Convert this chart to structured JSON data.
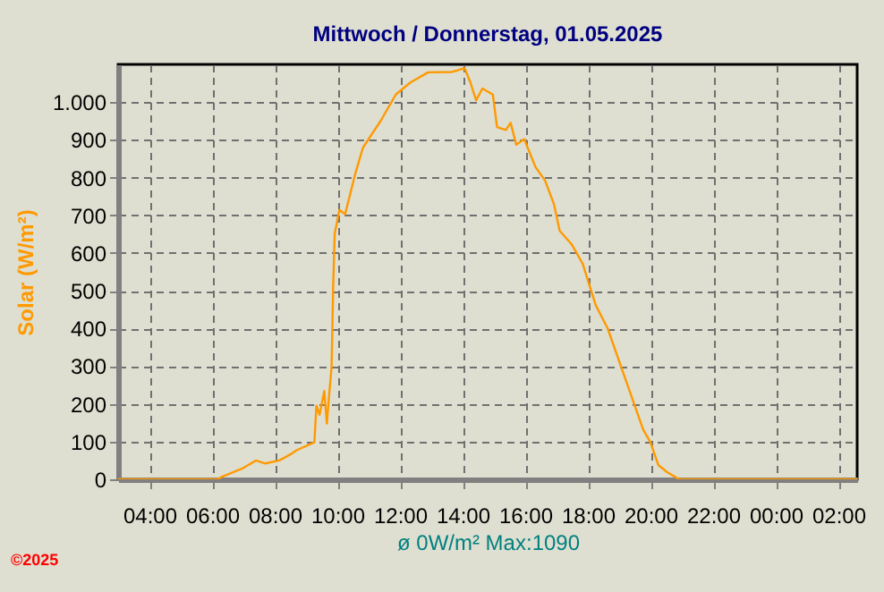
{
  "chart_data": {
    "type": "line",
    "title": "Mittwoch / Donnerstag, 01.05.2025",
    "ylabel": "Solar  (W/m²)",
    "xlabel": "ø 0W/m²  Max:1090",
    "annotations": [
      "©2025"
    ],
    "x": [
      "2025-04-30T03:00",
      "2025-04-30T06:10",
      "2025-04-30T06:18",
      "2025-04-30T07:00",
      "2025-04-30T07:24",
      "2025-04-30T07:42",
      "2025-04-30T08:09",
      "2025-04-30T08:30",
      "2025-04-30T08:42",
      "2025-04-30T09:16",
      "2025-04-30T09:20",
      "2025-04-30T09:26",
      "2025-04-30T09:35",
      "2025-04-30T09:40",
      "2025-04-30T09:44",
      "2025-04-30T09:49",
      "2025-04-30T09:52",
      "2025-04-30T09:55",
      "2025-04-30T10:04",
      "2025-04-30T10:15",
      "2025-04-30T10:34",
      "2025-04-30T10:49",
      "2025-04-30T11:06",
      "2025-04-30T11:23",
      "2025-04-30T11:52",
      "2025-04-30T12:20",
      "2025-04-30T12:54",
      "2025-04-30T13:40",
      "2025-04-30T14:04",
      "2025-04-30T14:15",
      "2025-04-30T14:26",
      "2025-04-30T14:38",
      "2025-04-30T14:58",
      "2025-04-30T15:06",
      "2025-04-30T15:23",
      "2025-04-30T15:32",
      "2025-04-30T15:43",
      "2025-04-30T15:58",
      "2025-04-30T16:20",
      "2025-04-30T16:38",
      "2025-04-30T16:55",
      "2025-04-30T17:06",
      "2025-04-30T17:29",
      "2025-04-30T17:50",
      "2025-04-30T18:15",
      "2025-04-30T18:38",
      "2025-04-30T19:12",
      "2025-04-30T19:46",
      "2025-04-30T20:00",
      "2025-04-30T20:15",
      "2025-04-30T20:32",
      "2025-04-30T20:55",
      "2025-05-01T02:36"
    ],
    "series": [
      {
        "color": "#ff9900",
        "values": [
          0,
          0,
          6,
          30,
          50,
          42,
          50,
          66,
          77,
          98,
          195,
          171,
          234,
          148,
          218,
          297,
          509,
          651,
          714,
          703,
          808,
          879,
          915,
          950,
          1020,
          1052,
          1079,
          1080,
          1090,
          1052,
          1005,
          1036,
          1020,
          934,
          926,
          945,
          887,
          902,
          827,
          792,
          730,
          659,
          623,
          572,
          462,
          400,
          266,
          132,
          98,
          38,
          19,
          0,
          0
        ]
      }
    ],
    "xlim": [
      "2025-04-30T03:00",
      "2025-05-01T02:36"
    ],
    "xticks": [
      {
        "value": "2025-04-30T04:00",
        "label": "04:00"
      },
      {
        "value": "2025-04-30T06:00",
        "label": "06:00"
      },
      {
        "value": "2025-04-30T08:00",
        "label": "08:00"
      },
      {
        "value": "2025-04-30T10:00",
        "label": "10:00"
      },
      {
        "value": "2025-04-30T12:00",
        "label": "12:00"
      },
      {
        "value": "2025-04-30T14:00",
        "label": "14:00"
      },
      {
        "value": "2025-04-30T16:00",
        "label": "16:00"
      },
      {
        "value": "2025-04-30T18:00",
        "label": "18:00"
      },
      {
        "value": "2025-04-30T20:00",
        "label": "20:00"
      },
      {
        "value": "2025-04-30T22:00",
        "label": "22:00"
      },
      {
        "value": "2025-05-01T00:00",
        "label": "00:00"
      },
      {
        "value": "2025-05-01T02:00",
        "label": "02:00"
      }
    ],
    "ylim": [
      0,
      1100
    ],
    "yticks": [
      0,
      100,
      200,
      300,
      400,
      500,
      600,
      700,
      800,
      900,
      {
        "value": 1000,
        "label": "1.000"
      }
    ],
    "grid": true,
    "marker": "none",
    "line_style": "solid"
  }
}
